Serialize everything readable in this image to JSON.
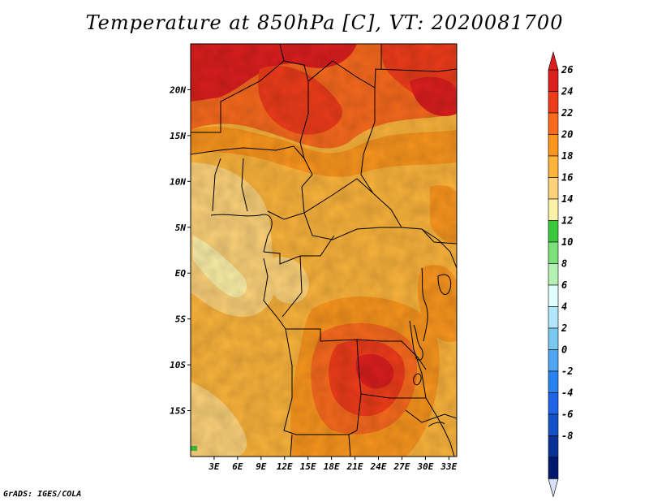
{
  "title": "Temperature at 850hPa [C], VT: 2020081700",
  "footer": "GrADS: IGES/COLA",
  "map": {
    "lon_range": [
      0,
      34
    ],
    "lat_range": [
      -20,
      25
    ],
    "lat_ticks": [
      {
        "value": 20,
        "label": "20N"
      },
      {
        "value": 15,
        "label": "15N"
      },
      {
        "value": 10,
        "label": "10N"
      },
      {
        "value": 5,
        "label": "5N"
      },
      {
        "value": 0,
        "label": "EQ"
      },
      {
        "value": -5,
        "label": "5S"
      },
      {
        "value": -10,
        "label": "10S"
      },
      {
        "value": -15,
        "label": "15S"
      }
    ],
    "lon_ticks": [
      {
        "value": 3,
        "label": "3E"
      },
      {
        "value": 6,
        "label": "6E"
      },
      {
        "value": 9,
        "label": "9E"
      },
      {
        "value": 12,
        "label": "12E"
      },
      {
        "value": 15,
        "label": "15E"
      },
      {
        "value": 18,
        "label": "18E"
      },
      {
        "value": 21,
        "label": "21E"
      },
      {
        "value": 24,
        "label": "24E"
      },
      {
        "value": 27,
        "label": "27E"
      },
      {
        "value": 30,
        "label": "30E"
      },
      {
        "value": 33,
        "label": "33E"
      }
    ]
  },
  "colorbar": {
    "labels": [
      "26",
      "24",
      "22",
      "20",
      "18",
      "16",
      "14",
      "12",
      "10",
      "8",
      "6",
      "4",
      "2",
      "0",
      "-2",
      "-4",
      "-6",
      "-8"
    ],
    "colors": [
      "#dc1e1e",
      "#ee3c1a",
      "#f86a1e",
      "#fa961e",
      "#fbb43c",
      "#fdd27a",
      "#fdf0a8",
      "#3cc83c",
      "#7be27b",
      "#b4f0b4",
      "#e1ffff",
      "#b4e6ff",
      "#78c8f0",
      "#50a5f0",
      "#2882f0",
      "#1e64e6",
      "#1450c8",
      "#0a3296",
      "#00196e"
    ],
    "top_color": "#dc1e1e",
    "bottom_color": "#d8e0f8"
  }
}
